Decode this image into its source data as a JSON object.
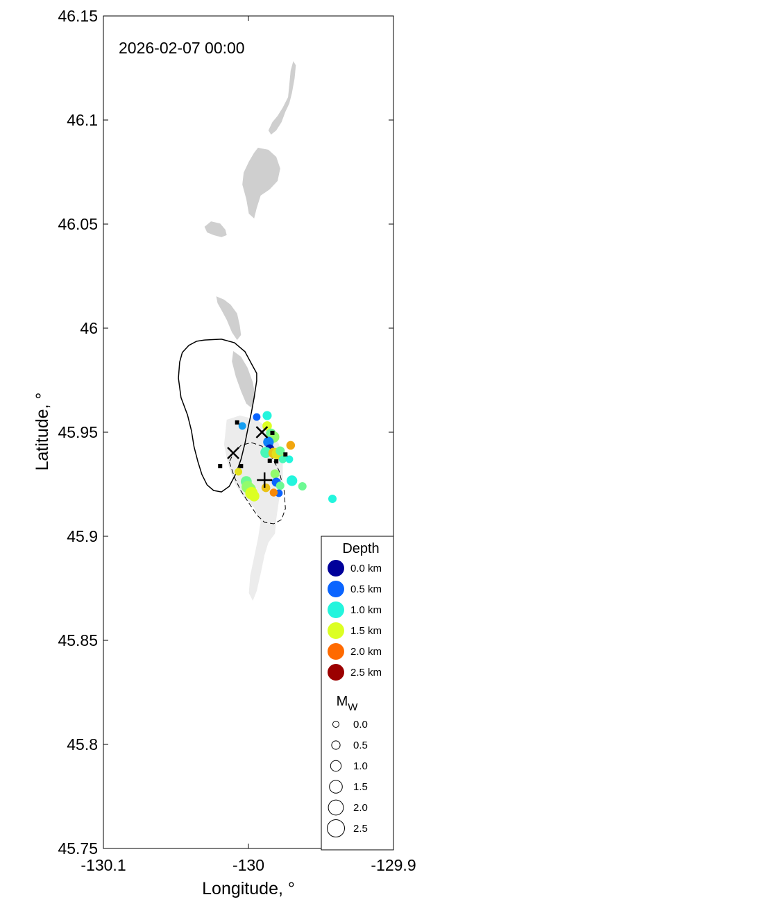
{
  "timestamp": "2026-02-07 00:00",
  "chart_data": {
    "type": "scatter",
    "xlabel": "Longitude, °",
    "ylabel": "Latitude, °",
    "xlim": [
      -130.1,
      -129.9
    ],
    "ylim": [
      45.75,
      46.15
    ],
    "x_ticks": [
      {
        "value": -130.1,
        "label": "-130.1"
      },
      {
        "value": -130.0,
        "label": "-130"
      },
      {
        "value": -129.9,
        "label": "-129.9"
      }
    ],
    "y_ticks": [
      {
        "value": 45.75,
        "label": "45.75"
      },
      {
        "value": 45.8,
        "label": "45.8"
      },
      {
        "value": 45.85,
        "label": "45.85"
      },
      {
        "value": 45.9,
        "label": "45.9"
      },
      {
        "value": 45.95,
        "label": "45.95"
      },
      {
        "value": 46.0,
        "label": "46"
      },
      {
        "value": 46.05,
        "label": "46.05"
      },
      {
        "value": 46.1,
        "label": "46.1"
      },
      {
        "value": 46.15,
        "label": "46.15"
      }
    ],
    "grid": false,
    "legend_position": "bottom-right",
    "colors": {
      "lava_flow_dark": "#cfcfcf",
      "lava_flow_light": "#ececec",
      "depth_0": "#00009a",
      "depth_0_5": "#0a64ff",
      "depth_1": "#23f5dd",
      "depth_1_5": "#dcff23",
      "depth_2": "#ff6a00",
      "depth_2_5": "#9b0000",
      "station_marker": "#000000"
    },
    "depth_legend": {
      "title": "Depth",
      "entries": [
        {
          "label": "0.0 km",
          "depth": 0.0,
          "color": "#00009a"
        },
        {
          "label": "0.5 km",
          "depth": 0.5,
          "color": "#0a64ff"
        },
        {
          "label": "1.0 km",
          "depth": 1.0,
          "color": "#23f5dd"
        },
        {
          "label": "1.5 km",
          "depth": 1.5,
          "color": "#dcff23"
        },
        {
          "label": "2.0 km",
          "depth": 2.0,
          "color": "#ff6a00"
        },
        {
          "label": "2.5 km",
          "depth": 2.5,
          "color": "#9b0000"
        }
      ]
    },
    "magnitude_legend": {
      "title": "M",
      "title_subscript": "W",
      "entries": [
        {
          "label": "0.0",
          "mw": 0.0
        },
        {
          "label": "0.5",
          "mw": 0.5
        },
        {
          "label": "1.0",
          "mw": 1.0
        },
        {
          "label": "1.5",
          "mw": 1.5
        },
        {
          "label": "2.0",
          "mw": 2.0
        },
        {
          "label": "2.5",
          "mw": 2.5
        }
      ]
    },
    "caldera_rim": [
      [
        -130.0303,
        45.9943
      ],
      [
        -130.0357,
        45.9937
      ],
      [
        -130.0411,
        45.9917
      ],
      [
        -130.0456,
        45.9883
      ],
      [
        -130.0474,
        45.9837
      ],
      [
        -130.0483,
        45.976
      ],
      [
        -130.0465,
        45.9667
      ],
      [
        -130.042,
        45.9583
      ],
      [
        -130.0393,
        45.9507
      ],
      [
        -130.0375,
        45.943
      ],
      [
        -130.0348,
        45.9357
      ],
      [
        -130.0321,
        45.9297
      ],
      [
        -130.0285,
        45.9247
      ],
      [
        -130.024,
        45.922
      ],
      [
        -130.0186,
        45.9213
      ],
      [
        -130.0132,
        45.924
      ],
      [
        -130.0087,
        45.93
      ],
      [
        -130.0051,
        45.937
      ],
      [
        -130.0024,
        45.9447
      ],
      [
        -130.0001,
        45.9527
      ],
      [
        -129.9979,
        45.9597
      ],
      [
        -129.9961,
        45.9667
      ],
      [
        -129.9943,
        45.9747
      ],
      [
        -129.9943,
        45.9783
      ],
      [
        -129.997,
        45.9817
      ],
      [
        -130.0024,
        45.9887
      ],
      [
        -130.0096,
        45.993
      ],
      [
        -130.0186,
        45.9947
      ],
      [
        -130.0303,
        45.9943
      ]
    ],
    "secondary_rim": [
      [
        -130.0132,
        45.9357
      ],
      [
        -130.0096,
        45.9283
      ],
      [
        -130.0051,
        45.9217
      ],
      [
        -129.9997,
        45.916
      ],
      [
        -129.9943,
        45.9103
      ],
      [
        -129.9889,
        45.9067
      ],
      [
        -129.9826,
        45.906
      ],
      [
        -129.9772,
        45.908
      ],
      [
        -129.9745,
        45.9133
      ],
      [
        -129.9754,
        45.922
      ],
      [
        -129.979,
        45.9317
      ],
      [
        -129.9844,
        45.9387
      ],
      [
        -129.9907,
        45.9433
      ],
      [
        -129.9979,
        45.945
      ],
      [
        -130.0051,
        45.9437
      ],
      [
        -130.0105,
        45.9397
      ],
      [
        -130.0132,
        45.9357
      ]
    ],
    "lava_flows_dark": [
      [
        [
          -129.9691,
          46.1283
        ],
        [
          -129.9709,
          46.1237
        ],
        [
          -129.9718,
          46.117
        ],
        [
          -129.9727,
          46.111
        ],
        [
          -129.9763,
          46.106
        ],
        [
          -129.9799,
          46.102
        ],
        [
          -129.9835,
          46.099
        ],
        [
          -129.9862,
          46.095
        ],
        [
          -129.9844,
          46.093
        ],
        [
          -129.9808,
          46.095
        ],
        [
          -129.9772,
          46.099
        ],
        [
          -129.9745,
          46.104
        ],
        [
          -129.9718,
          46.108
        ],
        [
          -129.97,
          46.113
        ],
        [
          -129.9682,
          46.12
        ],
        [
          -129.9673,
          46.1263
        ]
      ],
      [
        [
          -129.9934,
          46.0867
        ],
        [
          -129.9862,
          46.0857
        ],
        [
          -129.9808,
          46.0823
        ],
        [
          -129.9781,
          46.0767
        ],
        [
          -129.9799,
          46.0707
        ],
        [
          -129.9853,
          46.0667
        ],
        [
          -129.9916,
          46.0637
        ],
        [
          -129.9943,
          46.0577
        ],
        [
          -129.9961,
          46.0527
        ],
        [
          -129.9997,
          46.055
        ],
        [
          -130.0015,
          46.062
        ],
        [
          -130.0042,
          46.069
        ],
        [
          -130.0033,
          46.0747
        ],
        [
          -129.9997,
          46.08
        ],
        [
          -129.9961,
          46.0843
        ]
      ],
      [
        [
          -130.0258,
          46.0513
        ],
        [
          -130.0195,
          46.0503
        ],
        [
          -130.0159,
          46.0473
        ],
        [
          -130.015,
          46.0447
        ],
        [
          -130.0186,
          46.0437
        ],
        [
          -130.024,
          46.0447
        ],
        [
          -130.0285,
          46.046
        ],
        [
          -130.0303,
          46.0487
        ]
      ],
      [
        [
          -130.0222,
          46.0153
        ],
        [
          -130.0168,
          46.0137
        ],
        [
          -130.0123,
          46.0113
        ],
        [
          -130.0078,
          46.007
        ],
        [
          -130.006,
          46.0013
        ],
        [
          -130.0051,
          45.9967
        ],
        [
          -130.0078,
          45.9943
        ],
        [
          -130.0114,
          45.998
        ],
        [
          -130.015,
          46.004
        ],
        [
          -130.0186,
          46.0087
        ],
        [
          -130.0213,
          46.012
        ]
      ],
      [
        [
          -130.0105,
          45.989
        ],
        [
          -130.0051,
          45.9863
        ],
        [
          -130.0006,
          45.981
        ],
        [
          -129.997,
          45.974
        ],
        [
          -129.9952,
          45.967
        ],
        [
          -129.9979,
          45.9617
        ],
        [
          -130.0015,
          45.9637
        ],
        [
          -130.0051,
          45.9697
        ],
        [
          -130.0087,
          45.9767
        ],
        [
          -130.0114,
          45.984
        ]
      ]
    ],
    "lava_flows_light": [
      [
        [
          -130.015,
          45.956
        ],
        [
          -130.006,
          45.958
        ],
        [
          -129.9952,
          45.9563
        ],
        [
          -129.9853,
          45.9517
        ],
        [
          -129.979,
          45.9443
        ],
        [
          -129.9763,
          45.9353
        ],
        [
          -129.9763,
          45.926
        ],
        [
          -129.979,
          45.917
        ],
        [
          -129.9808,
          45.9083
        ],
        [
          -129.9817,
          45.9013
        ],
        [
          -129.9862,
          45.897
        ],
        [
          -129.9889,
          45.891
        ],
        [
          -129.9916,
          45.882
        ],
        [
          -129.9943,
          45.8737
        ],
        [
          -129.997,
          45.869
        ],
        [
          -129.9997,
          45.8727
        ],
        [
          -129.9988,
          45.881
        ],
        [
          -129.9961,
          45.89
        ],
        [
          -129.9934,
          45.899
        ],
        [
          -129.9916,
          45.907
        ],
        [
          -129.9961,
          45.9137
        ],
        [
          -130.0033,
          45.9187
        ],
        [
          -130.0096,
          45.9257
        ],
        [
          -130.0141,
          45.9347
        ],
        [
          -130.0168,
          45.944
        ]
      ]
    ],
    "events": [
      {
        "lon": -129.9943,
        "lat": 45.9573,
        "depth": 0.5,
        "mw": 0.6
      },
      {
        "lon": -129.9871,
        "lat": 45.958,
        "depth": 1.0,
        "mw": 1.0
      },
      {
        "lon": -130.0042,
        "lat": 45.953,
        "depth": 0.7,
        "mw": 0.6
      },
      {
        "lon": -129.9871,
        "lat": 45.953,
        "depth": 1.5,
        "mw": 1.1
      },
      {
        "lon": -129.9844,
        "lat": 45.9493,
        "depth": 1.2,
        "mw": 1.3
      },
      {
        "lon": -129.9826,
        "lat": 45.9477,
        "depth": 1.3,
        "mw": 1.6
      },
      {
        "lon": -129.9862,
        "lat": 45.9453,
        "depth": 0.6,
        "mw": 1.4
      },
      {
        "lon": -129.9853,
        "lat": 45.942,
        "depth": 0.1,
        "mw": 1.0
      },
      {
        "lon": -129.988,
        "lat": 45.9403,
        "depth": 1.1,
        "mw": 1.5
      },
      {
        "lon": -129.9826,
        "lat": 45.94,
        "depth": 1.7,
        "mw": 1.4
      },
      {
        "lon": -129.9799,
        "lat": 45.9397,
        "depth": 1.6,
        "mw": 1.7
      },
      {
        "lon": -129.9781,
        "lat": 45.941,
        "depth": 1.2,
        "mw": 1.0
      },
      {
        "lon": -129.9763,
        "lat": 45.937,
        "depth": 1.1,
        "mw": 0.7
      },
      {
        "lon": -129.9709,
        "lat": 45.9437,
        "depth": 1.8,
        "mw": 0.9
      },
      {
        "lon": -129.9718,
        "lat": 45.937,
        "depth": 1.0,
        "mw": 0.6
      },
      {
        "lon": -129.9817,
        "lat": 45.93,
        "depth": 1.3,
        "mw": 1.0
      },
      {
        "lon": -130.0069,
        "lat": 45.931,
        "depth": 1.6,
        "mw": 0.6
      },
      {
        "lon": -130.0015,
        "lat": 45.9263,
        "depth": 1.2,
        "mw": 1.5
      },
      {
        "lon": -130.0006,
        "lat": 45.9237,
        "depth": 1.3,
        "mw": 1.8
      },
      {
        "lon": -129.9988,
        "lat": 45.9227,
        "depth": 1.3,
        "mw": 1.6
      },
      {
        "lon": -129.9979,
        "lat": 45.9207,
        "depth": 1.5,
        "mw": 1.9
      },
      {
        "lon": -129.9961,
        "lat": 45.9193,
        "depth": 1.5,
        "mw": 1.4
      },
      {
        "lon": -129.988,
        "lat": 45.9233,
        "depth": 1.7,
        "mw": 0.9
      },
      {
        "lon": -129.9808,
        "lat": 45.926,
        "depth": 0.5,
        "mw": 1.0
      },
      {
        "lon": -129.9781,
        "lat": 45.9243,
        "depth": 1.2,
        "mw": 0.8
      },
      {
        "lon": -129.979,
        "lat": 45.9207,
        "depth": 0.5,
        "mw": 0.6
      },
      {
        "lon": -129.9826,
        "lat": 45.921,
        "depth": 1.9,
        "mw": 0.7
      },
      {
        "lon": -129.97,
        "lat": 45.9267,
        "depth": 1.0,
        "mw": 1.4
      },
      {
        "lon": -129.9628,
        "lat": 45.924,
        "depth": 1.2,
        "mw": 0.8
      },
      {
        "lon": -129.9421,
        "lat": 45.918,
        "depth": 1.0,
        "mw": 0.8
      }
    ],
    "stations": [
      [
        -130.0078,
        45.9547
      ],
      [
        -129.9835,
        45.9497
      ],
      [
        -130.0195,
        45.9337
      ],
      [
        -130.0051,
        45.9337
      ],
      [
        -129.9808,
        45.936
      ],
      [
        -129.9745,
        45.9393
      ],
      [
        -129.9853,
        45.9363
      ]
    ],
    "x_markers": [
      [
        -129.9907,
        45.95
      ],
      [
        -130.0105,
        45.94
      ]
    ],
    "plus_markers": [
      [
        -129.9889,
        45.927
      ]
    ]
  }
}
